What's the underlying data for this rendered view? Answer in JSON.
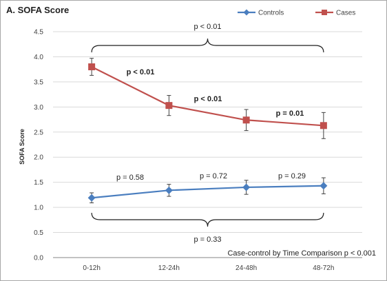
{
  "chart_data": {
    "type": "line",
    "title": "A. SOFA Score",
    "ylabel": "SOFA Score",
    "xlabel": "",
    "categories": [
      "0-12h",
      "12-24h",
      "24-48h",
      "48-72h"
    ],
    "ylim": [
      0,
      4.5
    ],
    "yticks": [
      "0.0",
      "0.5",
      "1.0",
      "1.5",
      "2.0",
      "2.5",
      "3.0",
      "3.5",
      "4.0",
      "4.5"
    ],
    "grid": true,
    "legend_position": "top-right",
    "series": [
      {
        "name": "Controls",
        "color": "#4a7ebf",
        "marker": "diamond",
        "values": [
          1.19,
          1.34,
          1.4,
          1.43
        ],
        "error": [
          0.1,
          0.12,
          0.14,
          0.16
        ]
      },
      {
        "name": "Cases",
        "color": "#c0504d",
        "marker": "square",
        "values": [
          3.8,
          3.03,
          2.74,
          2.63
        ],
        "error": [
          0.17,
          0.2,
          0.21,
          0.26
        ]
      }
    ],
    "annotations": {
      "cases_overall": "p < 0.01",
      "cases_pairwise": [
        "p < 0.01",
        "p < 0.01",
        "p = 0.01"
      ],
      "controls_pairwise": [
        "p = 0.58",
        "p = 0.72",
        "p = 0.29"
      ],
      "controls_overall": "p = 0.33",
      "interaction": "Case-control by Time Comparison  p < 0.001"
    }
  }
}
